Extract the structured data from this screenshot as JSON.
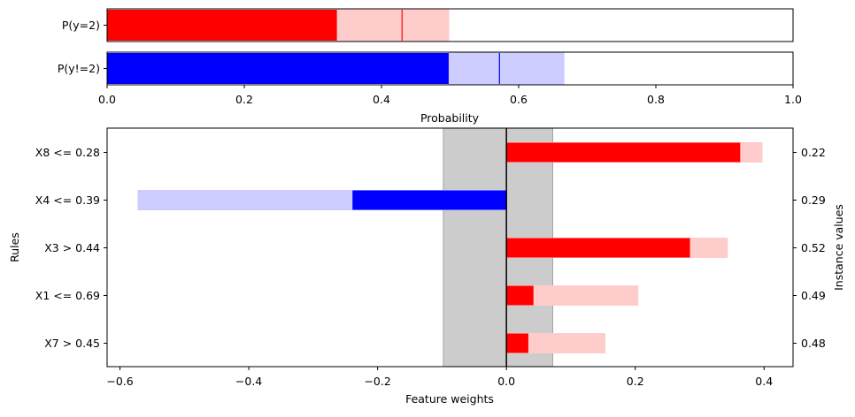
{
  "colors": {
    "positive": "#ff0000",
    "positive_light": "#ffcccc",
    "negative": "#0000ff",
    "negative_light": "#ccccff",
    "band": "#cccccc",
    "axis": "#000000"
  },
  "chart_data": [
    {
      "type": "bar",
      "orientation": "horizontal",
      "name": "probability",
      "categories": [
        "P(y=2)",
        "P(y!=2)"
      ],
      "series": [
        {
          "values": [
            0.335,
            0.498
          ],
          "interval_low": [
            0.335,
            0.498
          ],
          "interval_high": [
            0.498,
            0.666
          ],
          "marker": [
            0.43,
            0.572
          ]
        }
      ],
      "xlabel": "Probability",
      "xlim": [
        0.0,
        1.0
      ],
      "xticks": [
        0.0,
        0.2,
        0.4,
        0.6,
        0.8,
        1.0
      ],
      "xtick_labels": [
        "0.0",
        "0.2",
        "0.4",
        "0.6",
        "0.8",
        "1.0"
      ],
      "grid": false
    },
    {
      "type": "bar",
      "orientation": "horizontal",
      "name": "feature-weights",
      "categories": [
        "X8 <= 0.28",
        "X4 <= 0.39",
        "X3 > 0.44",
        "X1 <= 0.69",
        "X7 > 0.45"
      ],
      "instance_values": [
        "0.22",
        "0.29",
        "0.52",
        "0.49",
        "0.48"
      ],
      "series": [
        {
          "values": [
            0.363,
            -0.239,
            0.285,
            0.042,
            0.034
          ],
          "interval_low": [
            0.0,
            -0.572,
            0.0,
            0.0,
            0.0
          ],
          "interval_high": [
            0.397,
            0.0,
            0.343,
            0.204,
            0.153
          ]
        }
      ],
      "uncertainty_band": [
        -0.098,
        0.072
      ],
      "xlabel": "Feature weights",
      "ylabel": "Rules",
      "y2label": "Instance values",
      "xlim": [
        -0.62,
        0.445
      ],
      "xticks": [
        -0.6,
        -0.4,
        -0.2,
        0.0,
        0.2,
        0.4
      ],
      "xtick_labels": [
        "−0.6",
        "−0.4",
        "−0.2",
        "0.0",
        "0.2",
        "0.4"
      ],
      "grid": false
    }
  ]
}
